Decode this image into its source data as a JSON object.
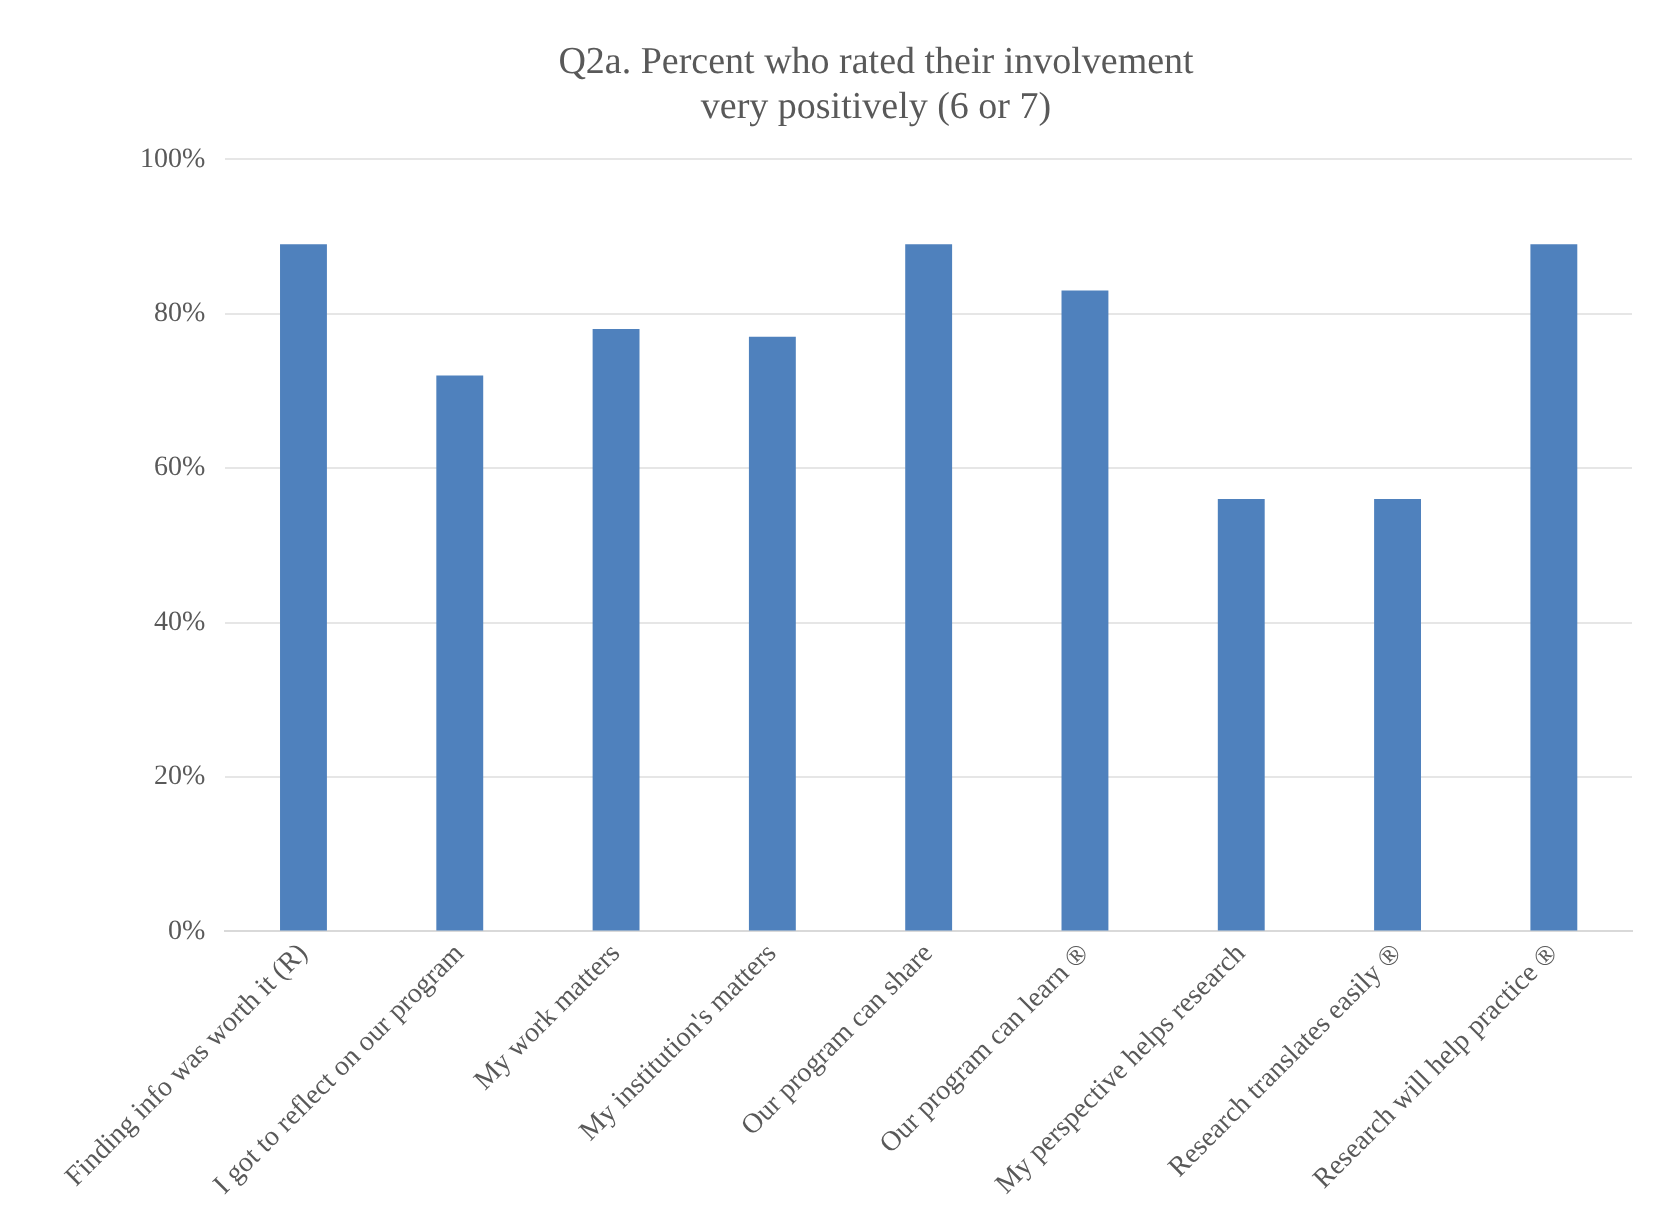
{
  "chart_data": {
    "type": "bar",
    "title": "Q2a. Percent who rated their involvement\nvery positively (6 or 7)",
    "categories": [
      "Finding info was worth it (R)",
      "I got to reflect on our program",
      "My work matters",
      "My institution's matters",
      "Our program can share",
      "Our program can learn ®",
      "My perspective helps research",
      "Research translates easily ®",
      "Research will help practice ®"
    ],
    "values": [
      89,
      72,
      78,
      77,
      89,
      83,
      56,
      56,
      89
    ],
    "color": "#4f81bd",
    "ylim": [
      0,
      100
    ],
    "yticks": [
      {
        "value": 0,
        "label": "0%"
      },
      {
        "value": 20,
        "label": "20%"
      },
      {
        "value": 40,
        "label": "40%"
      },
      {
        "value": 60,
        "label": "60%"
      },
      {
        "value": 80,
        "label": "80%"
      },
      {
        "value": 100,
        "label": "100%"
      }
    ],
    "grid": "y",
    "legend": false
  }
}
